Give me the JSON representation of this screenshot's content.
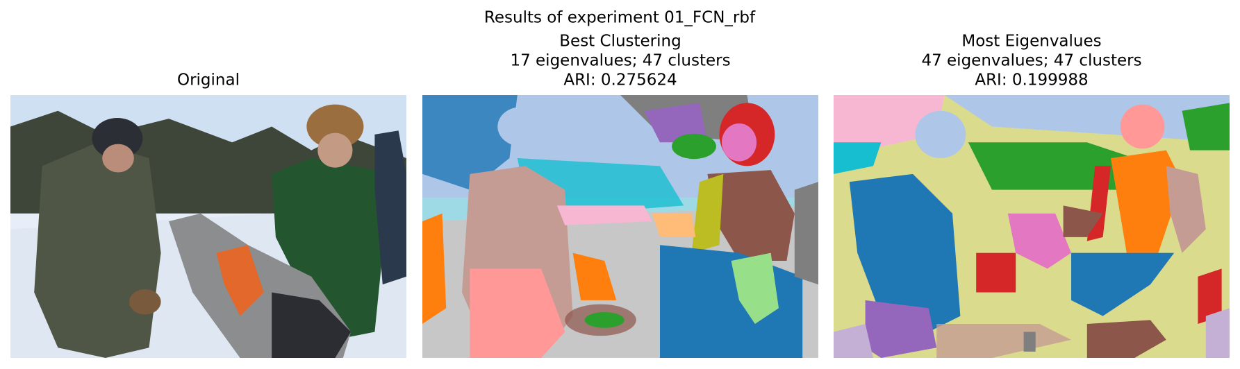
{
  "title": "Results of experiment 01_FCN_rbf",
  "panels": [
    {
      "title_lines": [
        "Original"
      ]
    },
    {
      "title_lines": [
        "Best Clustering",
        "17 eigenvalues; 47 clusters",
        "ARI: 0.275624"
      ]
    },
    {
      "title_lines": [
        "Most Eigenvalues",
        "47 eigenvalues; 47 clusters",
        "ARI: 0.199988"
      ]
    }
  ]
}
